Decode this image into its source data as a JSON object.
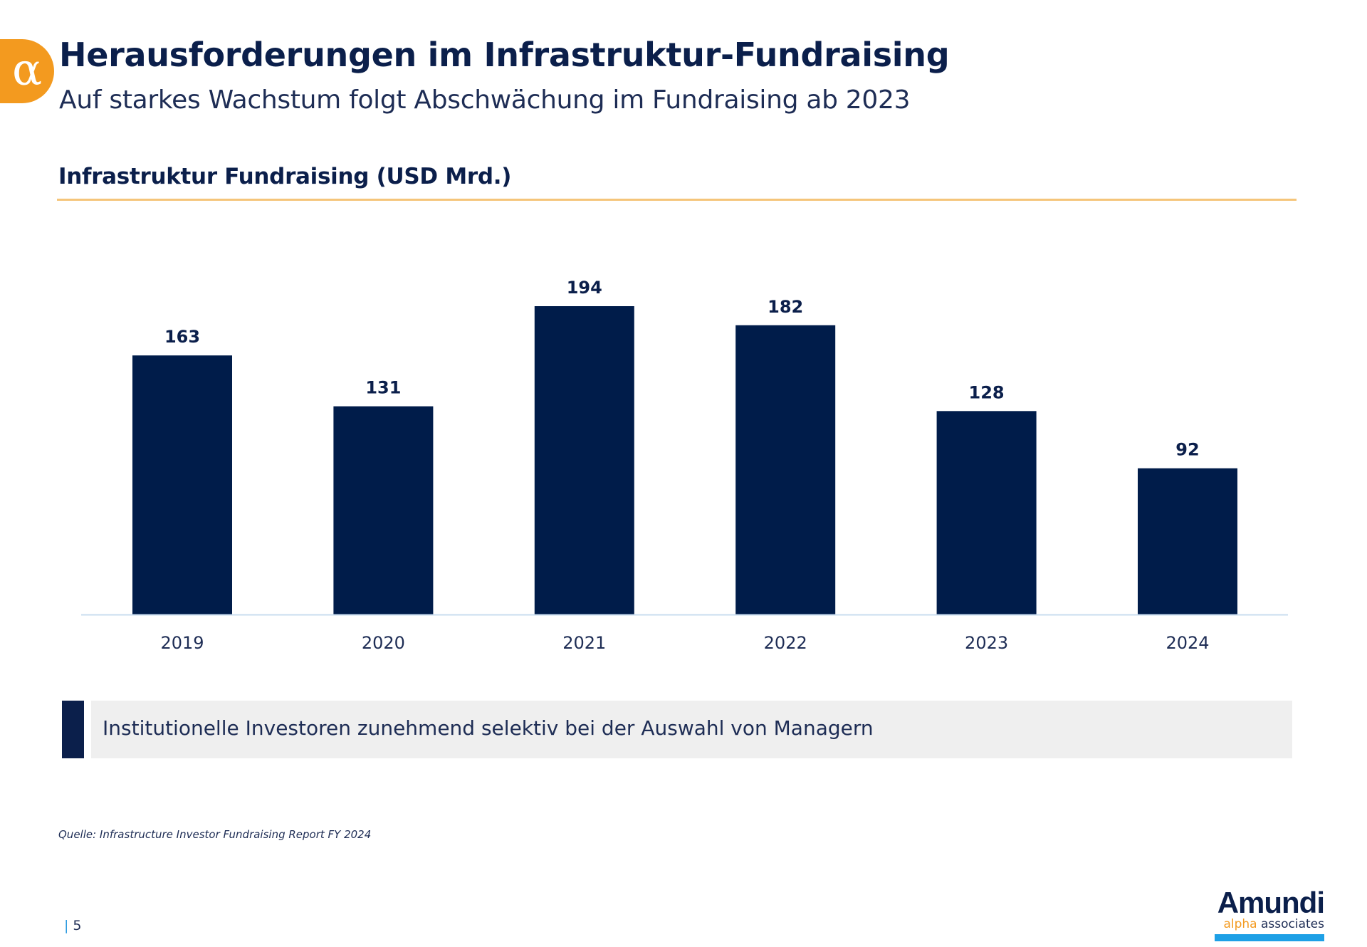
{
  "header": {
    "badge_symbol": "α",
    "title": "Herausforderungen im Infrastruktur-Fundraising",
    "subtitle": "Auf starkes Wachstum folgt Abschwächung im Fundraising ab 2023"
  },
  "chart_data": {
    "type": "bar",
    "title": "Infrastruktur Fundraising (USD Mrd.)",
    "categories": [
      "2019",
      "2020",
      "2021",
      "2022",
      "2023",
      "2024"
    ],
    "values": [
      163,
      131,
      194,
      182,
      128,
      92
    ],
    "xlabel": "",
    "ylabel": "",
    "ylim": [
      0,
      194
    ],
    "grid": false,
    "legend": "none",
    "bar_color": "#001c4a"
  },
  "callout": {
    "text": "Institutionelle Investoren zunehmend selektiv bei der Auswahl von Managern"
  },
  "footer": {
    "source": "Quelle: Infrastructure Investor Fundraising Report FY 2024",
    "page_number": "5",
    "logo_main": "Amundi",
    "logo_alpha": "alpha",
    "logo_associates": "associates"
  },
  "colors": {
    "accent": "#f39a1f",
    "navy": "#0b1f4b",
    "rule": "#f5c57a"
  }
}
